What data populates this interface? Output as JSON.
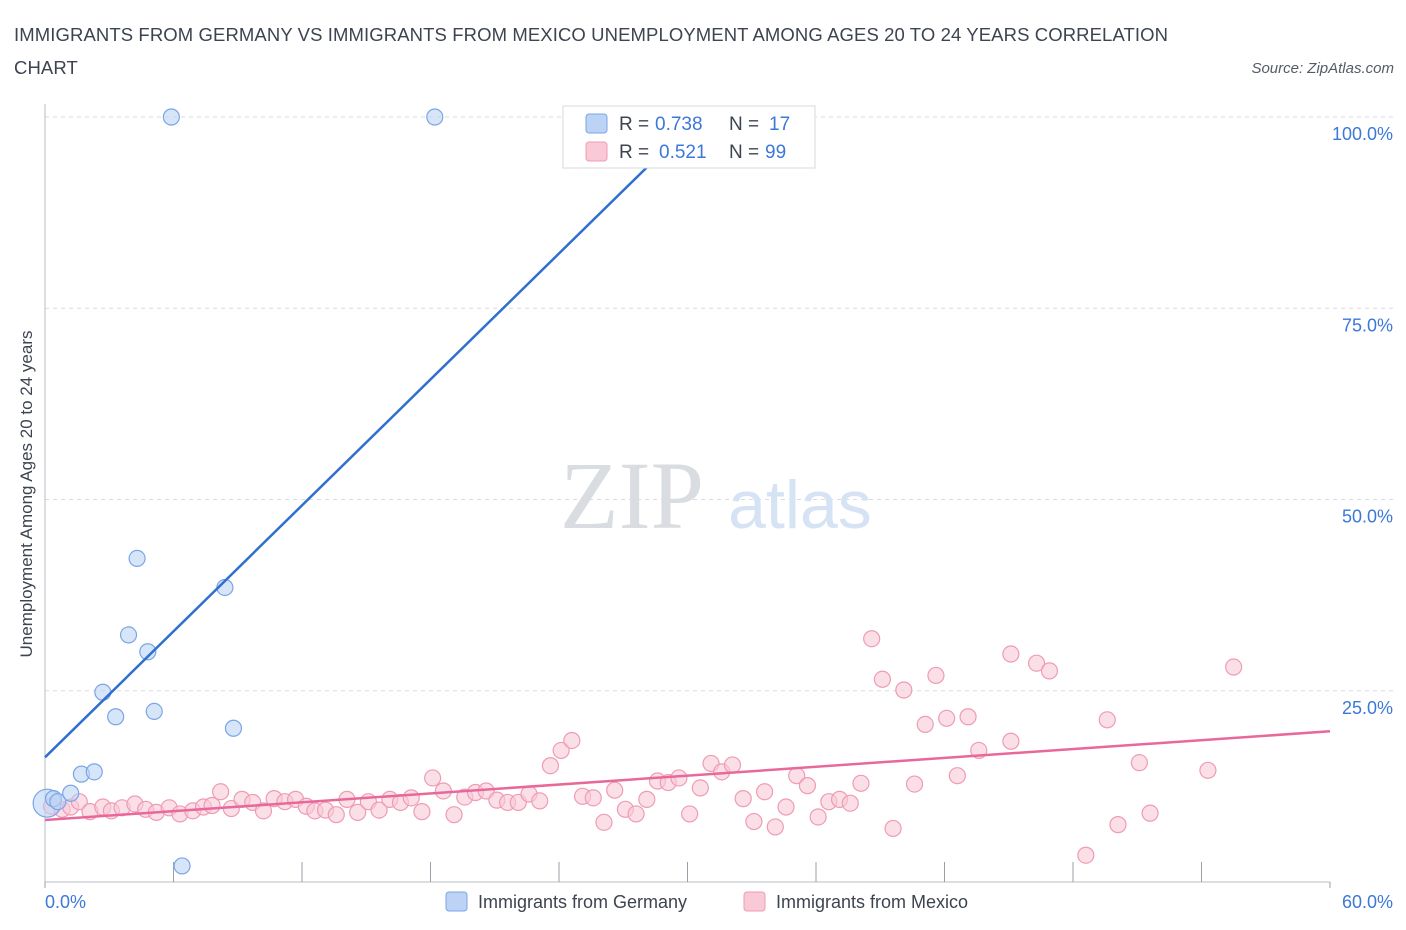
{
  "title": "IMMIGRANTS FROM GERMANY VS IMMIGRANTS FROM MEXICO UNEMPLOYMENT AMONG AGES 20 TO 24 YEARS CORRELATION CHART",
  "source": "Source: ZipAtlas.com",
  "watermark": {
    "zip": "ZIP",
    "atlas": "atlas"
  },
  "legend_stats": [
    {
      "r_label": "R =",
      "r_value": "0.738",
      "n_label": "N =",
      "n_value": "17"
    },
    {
      "r_label": "R =",
      "r_value": "0.521",
      "n_label": "N =",
      "n_value": "99"
    }
  ],
  "colors": {
    "germany_fill": "#bcd3f5",
    "germany_stroke": "#7aa5e6",
    "germany_line": "#2f6fd0",
    "mexico_fill": "#f9c9d7",
    "mexico_stroke": "#ef9bb5",
    "mexico_line": "#e8689a",
    "value_text": "#3c78d8",
    "axis_text": "#3d4450",
    "grid": "#d8dbe0"
  },
  "chart_data": {
    "type": "scatter",
    "title": "IMMIGRANTS FROM GERMANY VS IMMIGRANTS FROM MEXICO UNEMPLOYMENT AMONG AGES 20 TO 24 YEARS CORRELATION CHART",
    "xlabel": "",
    "ylabel": "Unemployment Among Ages 20 to 24 years",
    "xlim": [
      0,
      60
    ],
    "ylim": [
      0,
      100
    ],
    "x_tick_labels": [
      {
        "value": 0,
        "label": "0.0%"
      },
      {
        "value": 60,
        "label": "60.0%"
      }
    ],
    "y_tick_labels": [
      {
        "value": 25,
        "label": "25.0%"
      },
      {
        "value": 50,
        "label": "50.0%"
      },
      {
        "value": 75,
        "label": "75.0%"
      },
      {
        "value": 100,
        "label": "100.0%"
      }
    ],
    "x_minor_ticks": [
      0,
      6,
      12,
      18,
      24,
      30,
      36,
      42,
      48,
      54,
      60
    ],
    "legend": [
      "Immigrants from Germany",
      "Immigrants from Mexico"
    ],
    "series": [
      {
        "name": "Immigrants from Germany",
        "r": 0.738,
        "n": 17,
        "trend": {
          "x": [
            0,
            30.5
          ],
          "y": [
            16.3,
            100
          ]
        },
        "points": [
          [
            0.1,
            10.3
          ],
          [
            0.4,
            10.9
          ],
          [
            0.6,
            10.5
          ],
          [
            1.2,
            11.6
          ],
          [
            1.7,
            14.1
          ],
          [
            2.3,
            14.4
          ],
          [
            2.7,
            24.8
          ],
          [
            3.3,
            21.6
          ],
          [
            3.9,
            32.3
          ],
          [
            4.3,
            42.3
          ],
          [
            4.8,
            30.1
          ],
          [
            5.1,
            22.3
          ],
          [
            5.9,
            100
          ],
          [
            6.4,
            2.1
          ],
          [
            8.4,
            38.5
          ],
          [
            8.8,
            20.1
          ],
          [
            18.2,
            100
          ]
        ]
      },
      {
        "name": "Immigrants from Mexico",
        "r": 0.521,
        "n": 99,
        "trend": {
          "x": [
            0,
            60
          ],
          "y": [
            8.1,
            19.7
          ]
        },
        "points": [
          [
            0.3,
            9.9
          ],
          [
            0.8,
            9.5
          ],
          [
            1.2,
            9.8
          ],
          [
            1.6,
            10.5
          ],
          [
            2.1,
            9.2
          ],
          [
            2.7,
            9.8
          ],
          [
            3.1,
            9.3
          ],
          [
            3.6,
            9.7
          ],
          [
            4.2,
            10.2
          ],
          [
            4.7,
            9.5
          ],
          [
            5.2,
            9.1
          ],
          [
            5.8,
            9.7
          ],
          [
            6.3,
            8.9
          ],
          [
            6.9,
            9.3
          ],
          [
            7.4,
            9.8
          ],
          [
            7.8,
            10.0
          ],
          [
            8.2,
            11.8
          ],
          [
            8.7,
            9.6
          ],
          [
            9.2,
            10.8
          ],
          [
            9.7,
            10.4
          ],
          [
            10.2,
            9.3
          ],
          [
            10.7,
            10.9
          ],
          [
            11.2,
            10.5
          ],
          [
            11.7,
            10.8
          ],
          [
            12.2,
            9.9
          ],
          [
            12.6,
            9.3
          ],
          [
            13.1,
            9.4
          ],
          [
            13.6,
            8.8
          ],
          [
            14.1,
            10.8
          ],
          [
            14.6,
            9.1
          ],
          [
            15.1,
            10.5
          ],
          [
            15.6,
            9.4
          ],
          [
            16.1,
            10.8
          ],
          [
            16.6,
            10.4
          ],
          [
            17.1,
            11.0
          ],
          [
            17.6,
            9.2
          ],
          [
            18.1,
            13.6
          ],
          [
            18.6,
            11.9
          ],
          [
            19.1,
            8.8
          ],
          [
            19.6,
            11.1
          ],
          [
            20.1,
            11.7
          ],
          [
            20.6,
            11.9
          ],
          [
            21.1,
            10.7
          ],
          [
            21.6,
            10.4
          ],
          [
            22.1,
            10.4
          ],
          [
            22.6,
            11.5
          ],
          [
            23.1,
            10.6
          ],
          [
            23.6,
            15.2
          ],
          [
            24.1,
            17.2
          ],
          [
            24.6,
            18.5
          ],
          [
            25.1,
            11.2
          ],
          [
            25.6,
            11.0
          ],
          [
            26.1,
            7.8
          ],
          [
            26.6,
            12.0
          ],
          [
            27.1,
            9.5
          ],
          [
            27.6,
            8.9
          ],
          [
            28.1,
            10.8
          ],
          [
            28.6,
            13.2
          ],
          [
            29.1,
            13.0
          ],
          [
            29.6,
            13.6
          ],
          [
            30.1,
            8.9
          ],
          [
            30.6,
            12.3
          ],
          [
            31.1,
            15.5
          ],
          [
            31.6,
            14.4
          ],
          [
            32.1,
            15.3
          ],
          [
            32.6,
            10.9
          ],
          [
            33.1,
            7.9
          ],
          [
            33.6,
            11.8
          ],
          [
            34.1,
            7.2
          ],
          [
            34.6,
            9.8
          ],
          [
            35.1,
            13.9
          ],
          [
            35.6,
            12.6
          ],
          [
            36.1,
            8.5
          ],
          [
            36.6,
            10.5
          ],
          [
            37.1,
            10.8
          ],
          [
            37.6,
            10.3
          ],
          [
            38.1,
            12.9
          ],
          [
            38.6,
            31.8
          ],
          [
            39.1,
            26.5
          ],
          [
            39.6,
            7.0
          ],
          [
            40.1,
            25.1
          ],
          [
            40.6,
            12.8
          ],
          [
            41.1,
            20.6
          ],
          [
            41.6,
            27.0
          ],
          [
            42.1,
            21.4
          ],
          [
            42.6,
            13.9
          ],
          [
            43.1,
            21.6
          ],
          [
            43.6,
            17.2
          ],
          [
            45.1,
            29.8
          ],
          [
            45.1,
            18.4
          ],
          [
            46.3,
            28.6
          ],
          [
            46.9,
            27.6
          ],
          [
            48.6,
            3.5
          ],
          [
            49.6,
            21.2
          ],
          [
            50.1,
            7.5
          ],
          [
            51.1,
            15.6
          ],
          [
            51.6,
            9.0
          ],
          [
            54.3,
            14.6
          ],
          [
            55.5,
            28.1
          ]
        ]
      }
    ]
  },
  "bottom_legend": [
    {
      "label": "Immigrants from Germany"
    },
    {
      "label": "Immigrants from Mexico"
    }
  ]
}
